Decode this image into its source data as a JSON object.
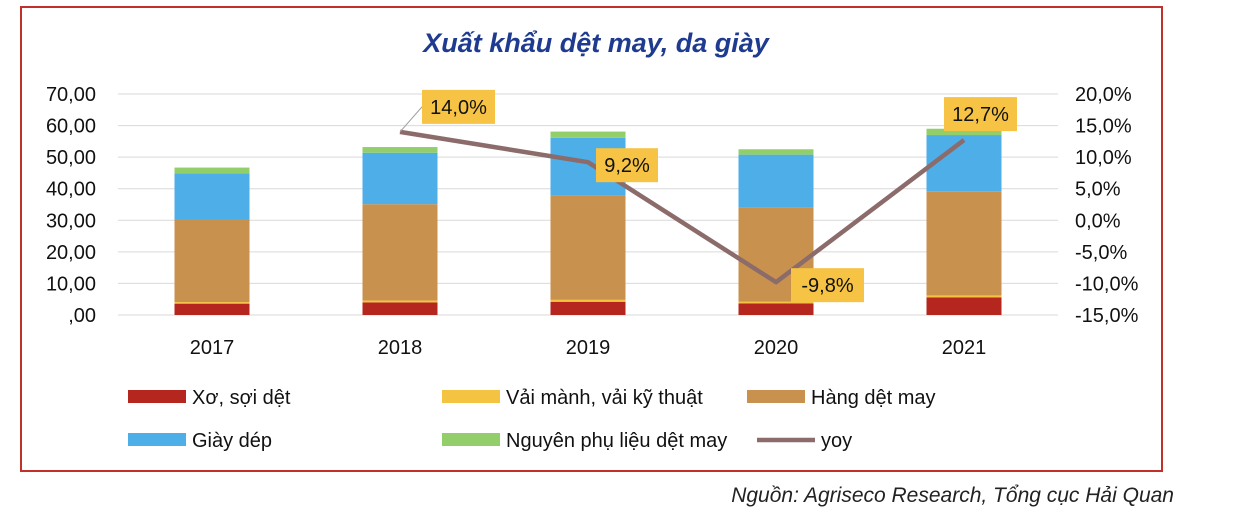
{
  "source": "Nguồn: Agriseco Research, Tổng cục Hải Quan",
  "chart_data": {
    "type": "bar",
    "stacked": true,
    "title": "Xuất khẩu dệt may, da giày",
    "categories": [
      "2017",
      "2018",
      "2019",
      "2020",
      "2021"
    ],
    "y_left": {
      "min": 0,
      "max": 70,
      "step": 10,
      "tick_labels": [
        ",00",
        "10,00",
        "20,00",
        "30,00",
        "40,00",
        "50,00",
        "60,00",
        "70,00"
      ]
    },
    "y_right": {
      "min": -15,
      "max": 20,
      "step": 5,
      "tick_labels": [
        "-15,0%",
        "-10,0%",
        "-5,0%",
        "0,0%",
        "5,0%",
        "10,0%",
        "15,0%",
        "20,0%"
      ]
    },
    "series": [
      {
        "name": "Xơ, sợi dệt",
        "color": "#b5261e",
        "values": [
          3.6,
          4.0,
          4.2,
          3.7,
          5.6
        ]
      },
      {
        "name": "Vải mành, vải kỹ thuật",
        "color": "#f5c342",
        "values": [
          0.5,
          0.6,
          0.6,
          0.5,
          0.6
        ]
      },
      {
        "name": "Hàng dệt may",
        "color": "#c8924e",
        "values": [
          26.0,
          30.5,
          33.0,
          29.8,
          33.0
        ]
      },
      {
        "name": "Giày dép",
        "color": "#4daee8",
        "values": [
          14.7,
          16.3,
          18.3,
          16.8,
          17.8
        ]
      },
      {
        "name": "Nguyên phụ liệu dệt may",
        "color": "#92cf6b",
        "values": [
          1.9,
          1.8,
          2.0,
          1.7,
          2.0
        ]
      }
    ],
    "line": {
      "name": "yoy",
      "color": "#8c6b6b",
      "values": [
        null,
        14.0,
        9.2,
        -9.8,
        12.7
      ],
      "labels": [
        null,
        "14,0%",
        "9,2%",
        "-9,8%",
        "12,7%"
      ]
    },
    "legend_position": "bottom"
  }
}
